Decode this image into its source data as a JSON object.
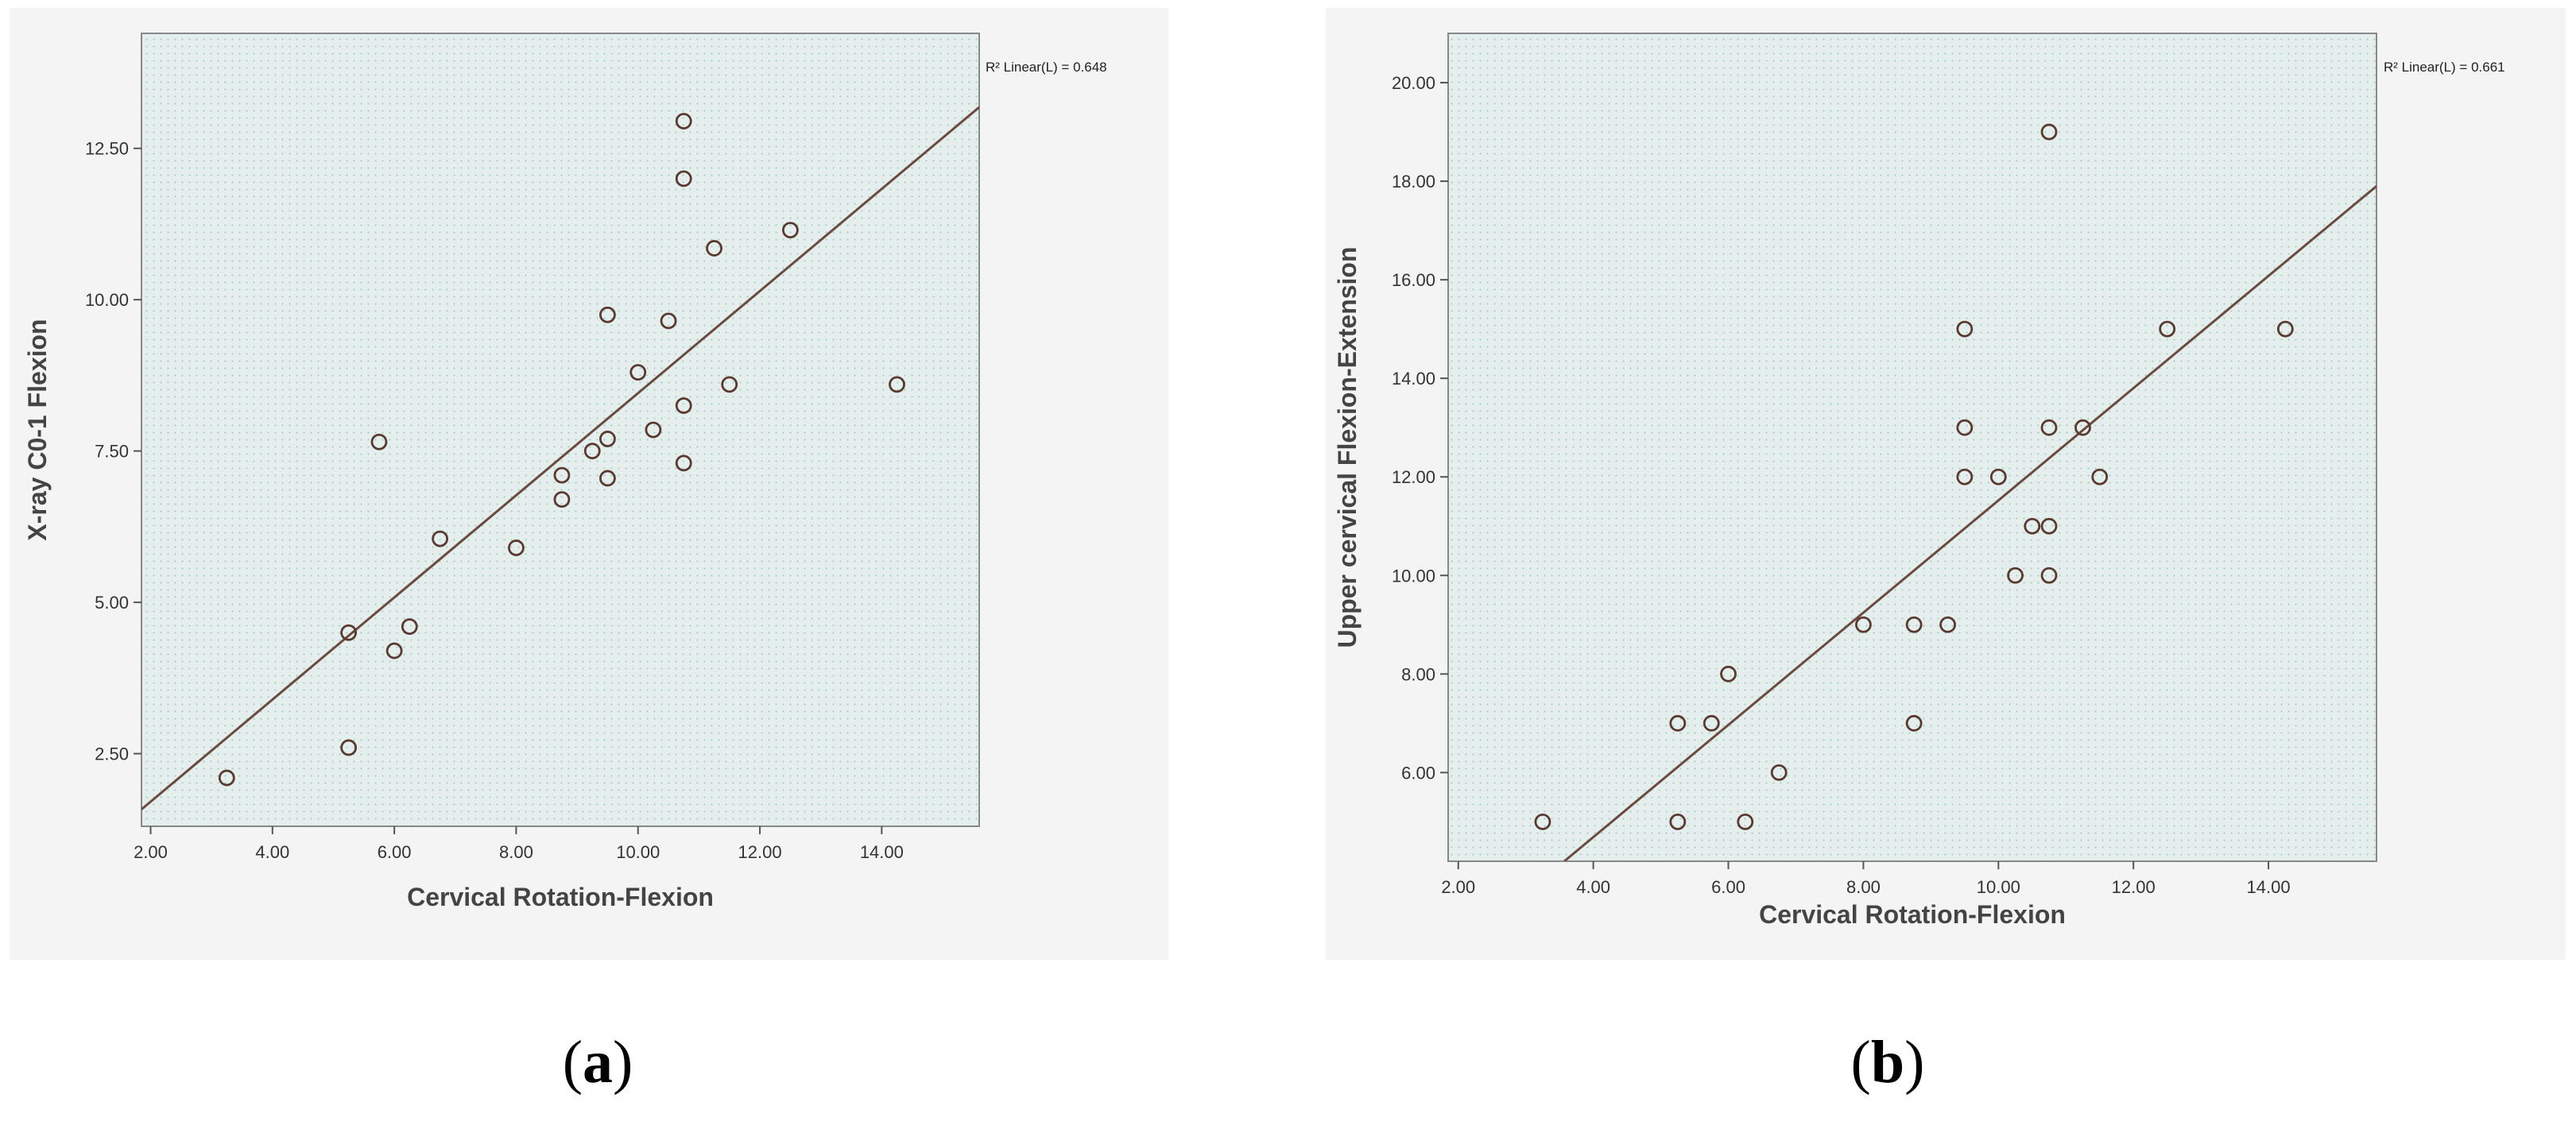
{
  "chart_data": [
    {
      "type": "scatter",
      "panel_label": "a",
      "xlabel": "Cervical Rotation-Flexion",
      "ylabel": "X-ray C0-1 Flexion",
      "xlim": [
        1.85,
        15.6
      ],
      "ylim": [
        1.3,
        14.4
      ],
      "x_ticks": [
        2,
        4,
        6,
        8,
        10,
        12,
        14
      ],
      "x_tick_labels": [
        "2.00",
        "4.00",
        "6.00",
        "8.00",
        "10.00",
        "12.00",
        "14.00"
      ],
      "y_ticks": [
        2.5,
        5,
        7.5,
        10,
        12.5
      ],
      "y_tick_labels": [
        "2.50",
        "5.00",
        "7.50",
        "10.00",
        "12.50"
      ],
      "grid": false,
      "fit_line": {
        "label": "R² Linear(L) = 0.648",
        "x": [
          1.85,
          15.6
        ],
        "y": [
          1.58,
          13.18
        ]
      },
      "points": [
        {
          "x": 3.25,
          "y": 2.1
        },
        {
          "x": 5.25,
          "y": 2.6
        },
        {
          "x": 5.25,
          "y": 4.5
        },
        {
          "x": 6.0,
          "y": 4.2
        },
        {
          "x": 6.25,
          "y": 4.6
        },
        {
          "x": 5.75,
          "y": 7.65
        },
        {
          "x": 6.75,
          "y": 6.05
        },
        {
          "x": 8.0,
          "y": 5.9
        },
        {
          "x": 8.75,
          "y": 6.7
        },
        {
          "x": 8.75,
          "y": 7.1
        },
        {
          "x": 9.25,
          "y": 7.5
        },
        {
          "x": 9.5,
          "y": 7.7
        },
        {
          "x": 9.5,
          "y": 7.05
        },
        {
          "x": 9.5,
          "y": 9.75
        },
        {
          "x": 10.0,
          "y": 8.8
        },
        {
          "x": 10.25,
          "y": 7.85
        },
        {
          "x": 10.5,
          "y": 9.65
        },
        {
          "x": 10.75,
          "y": 8.25
        },
        {
          "x": 10.75,
          "y": 7.3
        },
        {
          "x": 10.75,
          "y": 12.0
        },
        {
          "x": 10.75,
          "y": 12.95
        },
        {
          "x": 11.25,
          "y": 10.85
        },
        {
          "x": 11.5,
          "y": 8.6
        },
        {
          "x": 12.5,
          "y": 11.15
        },
        {
          "x": 14.25,
          "y": 8.6
        }
      ]
    },
    {
      "type": "scatter",
      "panel_label": "b",
      "xlabel": "Cervical Rotation-Flexion",
      "ylabel": "Upper cervical Flexion-Extension",
      "xlim": [
        1.85,
        15.6
      ],
      "ylim": [
        4.2,
        21.0
      ],
      "x_ticks": [
        2,
        4,
        6,
        8,
        10,
        12,
        14
      ],
      "x_tick_labels": [
        "2.00",
        "4.00",
        "6.00",
        "8.00",
        "10.00",
        "12.00",
        "14.00"
      ],
      "y_ticks": [
        6,
        8,
        10,
        12,
        14,
        16,
        18,
        20
      ],
      "y_tick_labels": [
        "6.00",
        "8.00",
        "10.00",
        "12.00",
        "14.00",
        "16.00",
        "18.00",
        "20.00"
      ],
      "grid": false,
      "fit_line": {
        "label": "R² Linear(L) = 0.661",
        "x": [
          3.57,
          15.6
        ],
        "y": [
          4.2,
          17.9
        ]
      },
      "points": [
        {
          "x": 3.25,
          "y": 5.0
        },
        {
          "x": 5.25,
          "y": 5.0
        },
        {
          "x": 5.25,
          "y": 7.0
        },
        {
          "x": 5.75,
          "y": 7.0
        },
        {
          "x": 6.0,
          "y": 8.0
        },
        {
          "x": 6.25,
          "y": 5.0
        },
        {
          "x": 6.75,
          "y": 6.0
        },
        {
          "x": 8.0,
          "y": 9.0
        },
        {
          "x": 8.75,
          "y": 9.0
        },
        {
          "x": 8.75,
          "y": 7.0
        },
        {
          "x": 9.25,
          "y": 9.0
        },
        {
          "x": 9.5,
          "y": 15.0
        },
        {
          "x": 9.5,
          "y": 13.0
        },
        {
          "x": 9.5,
          "y": 12.0
        },
        {
          "x": 10.0,
          "y": 12.0
        },
        {
          "x": 10.25,
          "y": 10.0
        },
        {
          "x": 10.5,
          "y": 11.0
        },
        {
          "x": 10.75,
          "y": 11.0
        },
        {
          "x": 10.75,
          "y": 10.0
        },
        {
          "x": 10.75,
          "y": 13.0
        },
        {
          "x": 10.75,
          "y": 19.0
        },
        {
          "x": 11.25,
          "y": 13.0
        },
        {
          "x": 11.5,
          "y": 12.0
        },
        {
          "x": 12.5,
          "y": 15.0
        },
        {
          "x": 14.25,
          "y": 15.0
        }
      ]
    }
  ],
  "colors": {
    "plot_background": "#e3eeed",
    "marker": "#5a3a30",
    "fit_line": "#6b4a40",
    "frame": "#888888"
  }
}
